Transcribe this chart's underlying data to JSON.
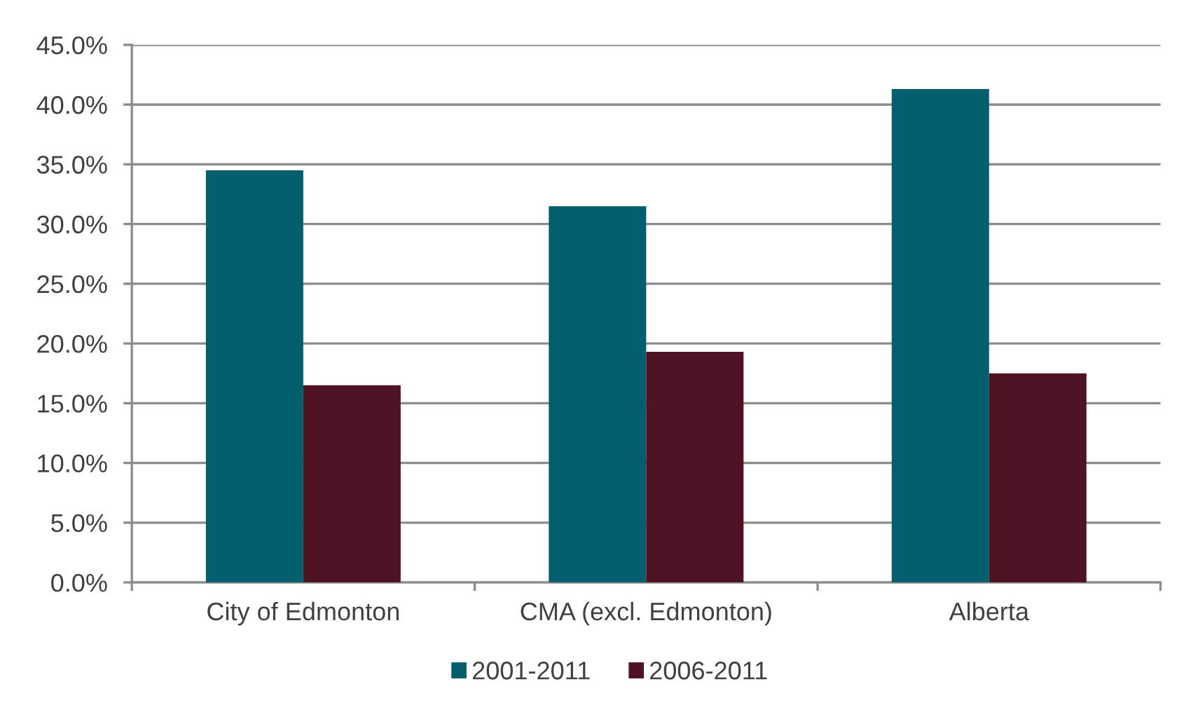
{
  "chart_data": {
    "type": "bar",
    "categories": [
      "City of Edmonton",
      "CMA (excl. Edmonton)",
      "Alberta"
    ],
    "series": [
      {
        "name": "2001-2011",
        "color": "#035f6d",
        "values": [
          34.5,
          31.5,
          41.3
        ]
      },
      {
        "name": "2006-2011",
        "color": "#4f1423",
        "values": [
          16.5,
          19.3,
          17.5
        ]
      }
    ],
    "ylim": [
      0,
      45
    ],
    "yticks": [
      {
        "value": 0,
        "label": "0.0%"
      },
      {
        "value": 5,
        "label": "5.0%"
      },
      {
        "value": 10,
        "label": "10.0%"
      },
      {
        "value": 15,
        "label": "15.0%"
      },
      {
        "value": 20,
        "label": "20.0%"
      },
      {
        "value": 25,
        "label": "25.0%"
      },
      {
        "value": 30,
        "label": "30.0%"
      },
      {
        "value": 35,
        "label": "35.0%"
      },
      {
        "value": 40,
        "label": "40.0%"
      },
      {
        "value": 45,
        "label": "45.0%"
      }
    ],
    "grid": "y",
    "legend": "bottom"
  }
}
